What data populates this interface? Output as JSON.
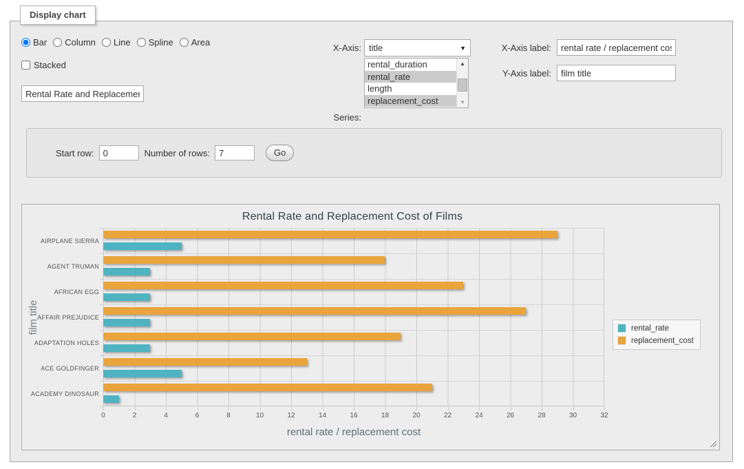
{
  "panel": {
    "legend_title": "Display chart"
  },
  "controls": {
    "chart_types": [
      {
        "label": "Bar",
        "selected": true
      },
      {
        "label": "Column",
        "selected": false
      },
      {
        "label": "Line",
        "selected": false
      },
      {
        "label": "Spline",
        "selected": false
      },
      {
        "label": "Area",
        "selected": false
      }
    ],
    "stacked": {
      "label": "Stacked",
      "checked": false
    },
    "chart_title_input": {
      "value": "Rental Rate and Replacement Cost of Films"
    },
    "x_axis": {
      "label": "X-Axis:",
      "selected": "title",
      "dropdown_icon": "▼"
    },
    "series_picker": {
      "label": "Series:",
      "options": [
        {
          "label": "rental_duration",
          "selected": false
        },
        {
          "label": "rental_rate",
          "selected": true
        },
        {
          "label": "length",
          "selected": false
        },
        {
          "label": "replacement_cost",
          "selected": true
        }
      ],
      "scroll_up_icon": "▲",
      "scroll_down_icon": "▼"
    },
    "x_axis_label_field": {
      "label": "X-Axis label:",
      "value": "rental rate / replacement cost"
    },
    "y_axis_label_field": {
      "label": "Y-Axis label:",
      "value": "film title"
    },
    "rows_form": {
      "start_row_label": "Start row:",
      "start_row_value": "0",
      "num_rows_label": "Number of rows:",
      "num_rows_value": "7",
      "go_label": "Go"
    }
  },
  "chart_data": {
    "type": "bar",
    "title": "Rental Rate and Replacement Cost of Films",
    "categories": [
      "AIRPLANE SIERRA",
      "AGENT TRUMAN",
      "AFRICAN EGG",
      "AFFAIR PREJUDICE",
      "ADAPTATION HOLES",
      "ACE GOLDFINGER",
      "ACADEMY DINOSAUR"
    ],
    "series": [
      {
        "name": "rental_rate",
        "color": "#4fb3c1",
        "values": [
          4.99,
          2.99,
          2.99,
          2.99,
          2.99,
          4.99,
          0.99
        ]
      },
      {
        "name": "replacement_cost",
        "color": "#e9a43b",
        "values": [
          28.99,
          17.99,
          22.99,
          26.99,
          18.99,
          12.99,
          20.99
        ]
      }
    ],
    "series_band_order_top_to_bottom": [
      "replacement_cost",
      "rental_rate"
    ],
    "xlabel": "rental rate / replacement cost",
    "ylabel": "film title",
    "xlim": [
      0,
      32
    ],
    "tick_step": 2,
    "grid": true,
    "legend_position": "right-middle"
  }
}
